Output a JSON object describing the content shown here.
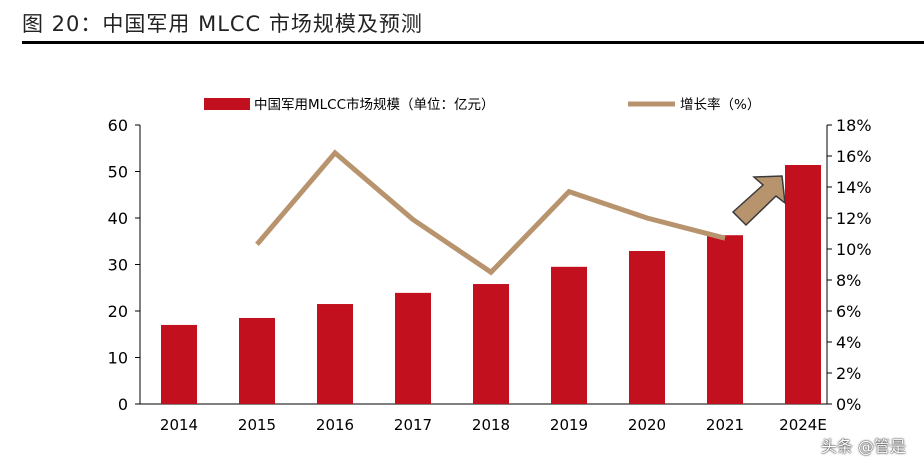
{
  "title": "图 20：中国军用 MLCC 市场规模及预测",
  "watermark": "头条 @管是",
  "chart_data": {
    "type": "bar+line",
    "categories": [
      "2014",
      "2015",
      "2016",
      "2017",
      "2018",
      "2019",
      "2020",
      "2021",
      "2024E"
    ],
    "series": [
      {
        "name": "中国军用MLCC市场规模（单位：亿元）",
        "type": "bar",
        "axis": "left",
        "color": "#C2101E",
        "values": [
          17.0,
          18.5,
          21.5,
          23.9,
          25.8,
          29.5,
          32.9,
          36.3,
          51.4
        ]
      },
      {
        "name": "增长率（%）",
        "type": "line",
        "axis": "right",
        "color": "#B8946E",
        "values": [
          null,
          10.3,
          16.2,
          11.9,
          8.5,
          13.7,
          12.0,
          10.7,
          null
        ]
      }
    ],
    "left_axis": {
      "ylim": [
        0,
        60
      ],
      "ticks": [
        "0",
        "10",
        "20",
        "30",
        "40",
        "50",
        "60"
      ]
    },
    "right_axis": {
      "ylim": [
        0,
        18
      ],
      "ticks": [
        "0%",
        "2%",
        "4%",
        "6%",
        "8%",
        "10%",
        "12%",
        "14%",
        "16%",
        "18%"
      ]
    },
    "legend": "top",
    "grid": false,
    "annotation": "upward arrow between 2021 and 2024E"
  }
}
